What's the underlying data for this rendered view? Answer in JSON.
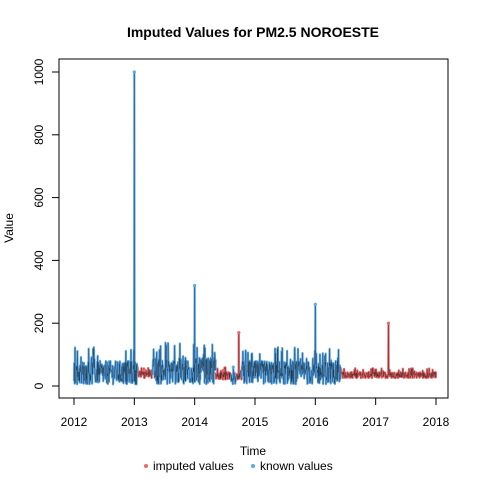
{
  "chart_data": {
    "type": "line",
    "title": "Imputed Values for  PM2.5 NOROESTE",
    "xlabel": "Time",
    "ylabel": "Value",
    "xlim": [
      2012,
      2018
    ],
    "ylim": [
      0,
      1000
    ],
    "x_ticks": [
      "2012",
      "2013",
      "2014",
      "2015",
      "2016",
      "2017",
      "2018"
    ],
    "y_ticks": [
      "0",
      "200",
      "400",
      "600",
      "800",
      "1000"
    ],
    "grid": false,
    "legend_position": "bottom",
    "colors": {
      "imputed": "#e8696b",
      "known": "#5ba8e8",
      "line": "#000000"
    },
    "series": [
      {
        "name": "imputed values",
        "segments": [
          {
            "x_start": 2013.05,
            "x_end": 2013.3,
            "typical": [
              25,
              50
            ],
            "peak": 50
          },
          {
            "x_start": 2014.35,
            "x_end": 2014.6,
            "typical": [
              20,
              45
            ],
            "peak": 50
          },
          {
            "x_start": 2014.68,
            "x_end": 2014.78,
            "typical": [
              20,
              40
            ],
            "peak": 170
          },
          {
            "x_start": 2016.42,
            "x_end": 2018.0,
            "typical": [
              25,
              45
            ],
            "peak": 200
          }
        ]
      },
      {
        "name": "known values",
        "segments": [
          {
            "x_start": 2012.0,
            "x_end": 2013.05,
            "typical": [
              5,
              80
            ],
            "peak": 1000,
            "peak_x": 2013.0
          },
          {
            "x_start": 2013.3,
            "x_end": 2014.35,
            "typical": [
              5,
              90
            ],
            "peak": 320,
            "peak_x": 2014.0
          },
          {
            "x_start": 2014.6,
            "x_end": 2014.68,
            "typical": [
              5,
              40
            ],
            "peak": 60
          },
          {
            "x_start": 2014.78,
            "x_end": 2016.42,
            "typical": [
              5,
              80
            ],
            "peak": 260,
            "peak_x": 2016.0
          }
        ]
      }
    ]
  }
}
